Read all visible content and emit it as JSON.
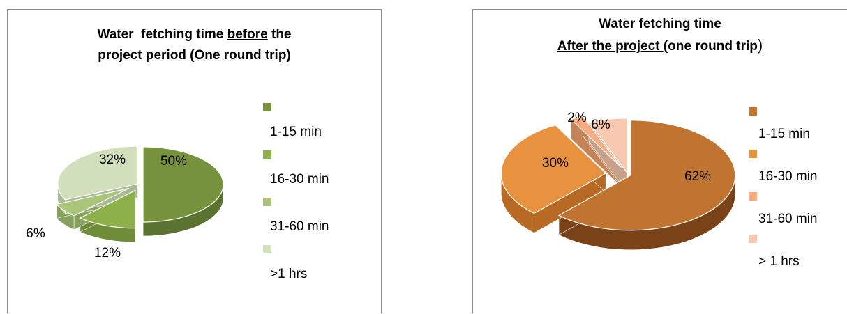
{
  "chart_data": [
    {
      "type": "pie",
      "title_parts": [
        "Water  fetching time ",
        "before",
        " the",
        "project period (One round trip)"
      ],
      "categories": [
        "1-15 min",
        "16-30 min",
        "31-60 min",
        ">1 hrs"
      ],
      "values": [
        50,
        12,
        6,
        32
      ],
      "data_labels": [
        "50%",
        "12%",
        "6%",
        "32%"
      ],
      "colors": [
        "#76923c",
        "#8db04a",
        "#a8c57a",
        "#d2dfbc"
      ],
      "side_colors": [
        "#5b7330",
        "#6f8d39",
        "#86a05e",
        "#a9b895"
      ],
      "legend_position": "right",
      "exploded": true
    },
    {
      "type": "pie",
      "title_parts": [
        "Water fetching time",
        "After the project ",
        "(one round trip",
        ")"
      ],
      "categories": [
        "1-15 min",
        "16-30 min",
        "31-60 min",
        "> 1 hrs"
      ],
      "values": [
        62,
        30,
        2,
        6
      ],
      "data_labels": [
        "62%",
        "30%",
        "2%",
        "6%"
      ],
      "colors": [
        "#c0742f",
        "#e8913f",
        "#f5ab7d",
        "#f7c9b1"
      ],
      "side_colors": [
        "#7a4317",
        "#b86a24",
        "#c48358",
        "#c9a08a"
      ],
      "legend_position": "right",
      "exploded": true
    }
  ]
}
